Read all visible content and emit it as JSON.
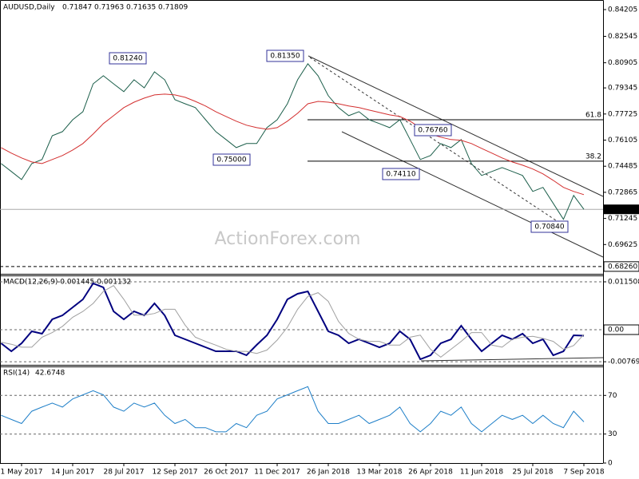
{
  "chart_data": [
    {
      "type": "line",
      "title": "AUDUSD,Daily",
      "ohlc": [
        0.71847,
        0.71963,
        0.71635,
        0.71809
      ],
      "watermark": "ActionForex.com",
      "categories": [
        null,
        null,
        "1 May 2017",
        null,
        null,
        null,
        null,
        "14 Jun 2017",
        null,
        null,
        null,
        null,
        "28 Jul 2017",
        null,
        null,
        null,
        null,
        "12 Sep 2017",
        null,
        null,
        null,
        null,
        "26 Oct 2017",
        null,
        null,
        null,
        null,
        "11 Dec 2017",
        null,
        null,
        null,
        null,
        "26 Jan 2018",
        null,
        null,
        null,
        null,
        "13 Mar 2018",
        null,
        null,
        null,
        null,
        "26 Apr 2018",
        null,
        null,
        null,
        null,
        "11 Jun 2018",
        null,
        null,
        null,
        null,
        "25 Jul 2018",
        null,
        null,
        null,
        null,
        "7 Sep 2018"
      ],
      "series": [
        {
          "color": "#1b5e4a",
          "values": [
            0.7465,
            0.7416,
            0.7366,
            0.7465,
            0.749,
            0.7638,
            0.7663,
            0.7737,
            0.7787,
            0.796,
            0.801,
            0.796,
            0.7911,
            0.7985,
            0.7935,
            0.8034,
            0.7985,
            0.7861,
            0.7836,
            0.7812,
            0.7737,
            0.7663,
            0.7614,
            0.7564,
            0.7589,
            0.7589,
            0.7688,
            0.7737,
            0.7836,
            0.7985,
            0.8084,
            0.801,
            0.7886,
            0.7812,
            0.7762,
            0.7787,
            0.7737,
            0.7713,
            0.7688,
            0.7737,
            0.7614,
            0.749,
            0.7515,
            0.7589,
            0.7564,
            0.7614,
            0.7465,
            0.7391,
            0.7416,
            0.744,
            0.7416,
            0.7391,
            0.7292,
            0.7317,
            0.7218,
            0.7119,
            0.7267,
            0.71809
          ]
        },
        {
          "color": "#d32f2f",
          "values": [
            0.7564,
            0.753,
            0.75,
            0.7475,
            0.7465,
            0.749,
            0.7515,
            0.7549,
            0.7589,
            0.7648,
            0.7713,
            0.7762,
            0.7812,
            0.7846,
            0.7871,
            0.7891,
            0.7896,
            0.7891,
            0.7876,
            0.7851,
            0.7822,
            0.7787,
            0.7757,
            0.7728,
            0.7703,
            0.7688,
            0.7678,
            0.7688,
            0.7728,
            0.7777,
            0.7836,
            0.7851,
            0.7846,
            0.7836,
            0.7822,
            0.7812,
            0.7797,
            0.7782,
            0.7767,
            0.7757,
            0.7728,
            0.7688,
            0.7648,
            0.7629,
            0.7614,
            0.7609,
            0.7589,
            0.7559,
            0.753,
            0.75,
            0.7475,
            0.7455,
            0.7431,
            0.7401,
            0.7361,
            0.7317,
            0.7292,
            0.7272
          ]
        }
      ],
      "ylim": [
        0.67807,
        0.84651
      ],
      "yticks": [
        0.84205,
        0.82545,
        0.80905,
        0.79345,
        0.77725,
        0.76105,
        0.74485,
        0.72865,
        0.71245,
        0.69625
      ],
      "levels": [
        {
          "value": 0.6826,
          "label": "0.68260"
        }
      ],
      "fib": [
        {
          "label": "61.8",
          "value": 0.7737
        },
        {
          "label": "38.2",
          "value": 0.748
        }
      ],
      "annotations": [
        "0.81240",
        "0.81350",
        "0.75000",
        "0.76760",
        "0.74110",
        "0.70840"
      ]
    },
    {
      "type": "line",
      "title": "MACD(12,26,9)",
      "readout": [
        -0.001445,
        -0.001132
      ],
      "series": [
        {
          "color": "#00007f",
          "values": [
            -0.00326,
            -0.00518,
            -0.00326,
            -0.00038,
            -0.00096,
            0.00249,
            0.00345,
            0.00537,
            0.00729,
            0.01112,
            0.01017,
            0.00441,
            0.00249,
            0.00441,
            0.00345,
            0.00633,
            0.00345,
            -0.00134,
            -0.0023,
            -0.00326,
            -0.00422,
            -0.00518,
            -0.00518,
            -0.00518,
            -0.00614,
            -0.00364,
            -0.00134,
            0.00249,
            0.00729,
            0.00863,
            0.00921,
            0.00441,
            -0.00038,
            -0.00134,
            -0.00326,
            -0.0023,
            -0.00326,
            -0.00422,
            -0.00326,
            -0.00038,
            -0.0023,
            -0.0071,
            -0.00614,
            -0.00326,
            -0.0023,
            0.00096,
            -0.0023,
            -0.00518,
            -0.00326,
            -0.00134,
            -0.0023,
            -0.00096,
            -0.00326,
            -0.0023,
            -0.00614,
            -0.00518,
            -0.00134,
            -0.001445
          ]
        },
        {
          "color": "#a0a0a0",
          "values": [
            -0.003,
            -0.0035,
            -0.0042,
            -0.0042,
            -0.0018,
            -0.0007,
            0.0008,
            0.003,
            0.0044,
            0.0063,
            0.0092,
            0.0106,
            0.0073,
            0.0035,
            0.0035,
            0.0039,
            0.0049,
            0.0049,
            0.0011,
            -0.0018,
            -0.0028,
            -0.0037,
            -0.0047,
            -0.0052,
            -0.0052,
            -0.0057,
            -0.0049,
            -0.0025,
            0.0006,
            0.0049,
            0.008,
            0.0089,
            0.0068,
            0.002,
            -0.0009,
            -0.0023,
            -0.0028,
            -0.0028,
            -0.0037,
            -0.0037,
            -0.0018,
            -0.0013,
            -0.0047,
            -0.0066,
            -0.0047,
            -0.0028,
            -0.0007,
            -0.0007,
            -0.0037,
            -0.0042,
            -0.0023,
            -0.0018,
            -0.0016,
            -0.0021,
            -0.0028,
            -0.0047,
            -0.0038,
            -0.001132
          ]
        }
      ],
      "ylim": [
        -0.00844,
        0.01304
      ],
      "yticks": [
        0.011508,
        {
          "value": 0,
          "label": "0.00"
        },
        -0.007694
      ]
    },
    {
      "type": "line",
      "title": "RSI(14)",
      "readout": 42.6748,
      "series": [
        {
          "color": "#1e7fc8",
          "values": [
            49.4,
            45.1,
            40.9,
            53.6,
            57.9,
            62.1,
            57.9,
            66.4,
            70.6,
            74.9,
            70.6,
            57.9,
            53.6,
            62.1,
            57.9,
            62.1,
            49.4,
            40.9,
            45.1,
            36.6,
            36.6,
            32.3,
            32.3,
            40.9,
            36.6,
            49.4,
            53.6,
            66.4,
            70.6,
            74.9,
            79.1,
            53.6,
            40.9,
            40.9,
            45.1,
            49.4,
            40.9,
            45.1,
            49.4,
            57.9,
            40.9,
            32.3,
            40.9,
            53.6,
            49.4,
            57.9,
            40.9,
            32.3,
            40.9,
            49.4,
            45.1,
            49.4,
            40.9,
            49.4,
            40.9,
            36.6,
            53.6,
            42.6748
          ]
        }
      ],
      "ylim": [
        0,
        100
      ],
      "yticks": [
        70,
        30,
        0
      ]
    }
  ]
}
